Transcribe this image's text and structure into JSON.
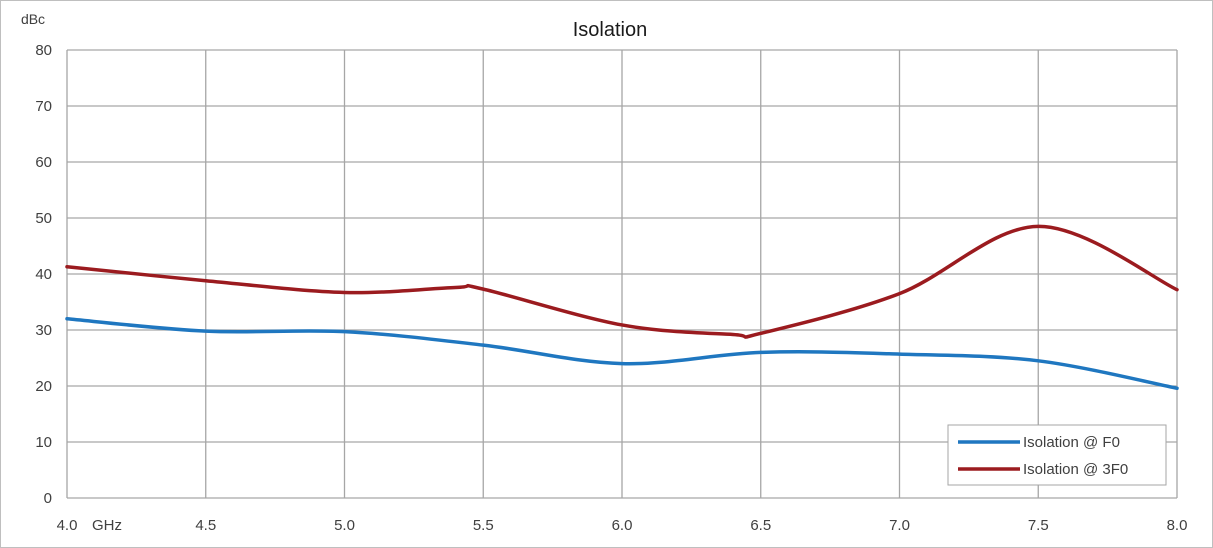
{
  "chart_data": {
    "type": "line",
    "title": "Isolation",
    "ylabel": "dBc",
    "x_unit": "GHz",
    "ylim": [
      0,
      80
    ],
    "xlim": [
      4.0,
      8.0
    ],
    "y_ticks": [
      "0",
      "10",
      "20",
      "30",
      "40",
      "50",
      "60",
      "70",
      "80"
    ],
    "x_ticks": [
      "4.0",
      "4.5",
      "5.0",
      "5.5",
      "6.0",
      "6.5",
      "7.0",
      "7.5",
      "8.0"
    ],
    "grid": true,
    "legend_position": "bottom-right",
    "series": [
      {
        "name": "Isolation @ F0",
        "color": "#1f77c0",
        "x": [
          4.0,
          4.5,
          5.0,
          5.5,
          6.0,
          6.5,
          7.0,
          7.5,
          8.0
        ],
        "y": [
          32,
          29.8,
          29.7,
          27.3,
          24,
          26,
          25.7,
          24.5,
          19.6
        ]
      },
      {
        "name": "Isolation @ 3F0",
        "color": "#9b1b1f",
        "x": [
          4.0,
          4.5,
          5.0,
          5.4,
          5.5,
          6.0,
          6.4,
          6.5,
          7.0,
          7.5,
          8.0
        ],
        "y": [
          41.3,
          38.8,
          36.7,
          37.6,
          37.3,
          30.9,
          29.2,
          29.4,
          36.5,
          48.5,
          37.2
        ]
      }
    ]
  }
}
